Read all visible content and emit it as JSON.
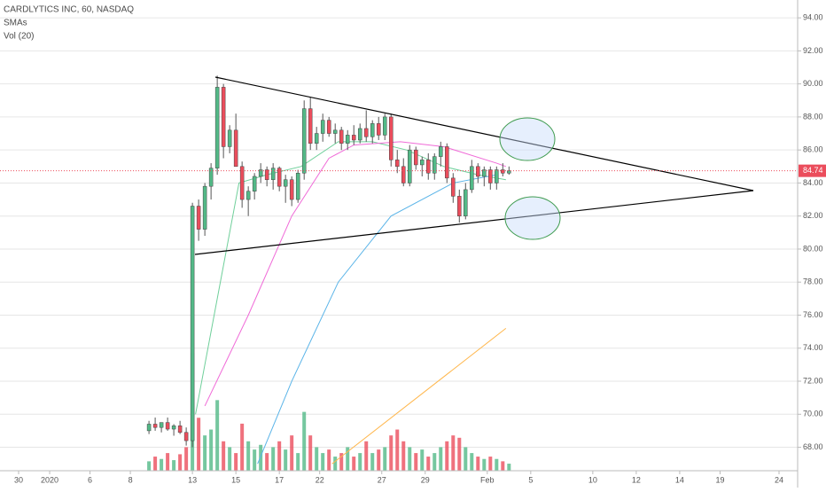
{
  "chart_data": {
    "type": "candlestick",
    "title": "CARDLYTICS INC, 60, NASDAQ",
    "indicators": [
      "SMAs",
      "Vol (20)"
    ],
    "xlim": [
      0,
      257
    ],
    "ylim": [
      66.58,
      95.08
    ],
    "volume_lim": [
      0,
      400
    ],
    "grid": true,
    "up_color": "#53b987",
    "down_color": "#eb4d5c",
    "last_price": 84.74,
    "last_price_color": "#eb4d5c",
    "yticks": [
      {
        "value": 68,
        "label": "68.00"
      },
      {
        "value": 70,
        "label": "70.00"
      },
      {
        "value": 72,
        "label": "72.00"
      },
      {
        "value": 74,
        "label": "74.00"
      },
      {
        "value": 76,
        "label": "76.00"
      },
      {
        "value": 78,
        "label": "78.00"
      },
      {
        "value": 80,
        "label": "80.00"
      },
      {
        "value": 82,
        "label": "82.00"
      },
      {
        "value": 84,
        "label": "84.00"
      },
      {
        "value": 86,
        "label": "86.00"
      },
      {
        "value": 88,
        "label": "88.00"
      },
      {
        "value": 90,
        "label": "90.00"
      },
      {
        "value": 92,
        "label": "92.00"
      },
      {
        "value": 94,
        "label": "94.00"
      }
    ],
    "xticks": [
      {
        "value": 6,
        "label": "30"
      },
      {
        "value": 16,
        "label": "2020"
      },
      {
        "value": 29,
        "label": "6"
      },
      {
        "value": 42,
        "label": "8"
      },
      {
        "value": 62,
        "label": "13"
      },
      {
        "value": 76,
        "label": "15"
      },
      {
        "value": 90,
        "label": "17"
      },
      {
        "value": 103,
        "label": "22"
      },
      {
        "value": 123,
        "label": "27"
      },
      {
        "value": 137,
        "label": "29"
      },
      {
        "value": 157,
        "label": "Feb"
      },
      {
        "value": 171,
        "label": "5"
      },
      {
        "value": 191,
        "label": "10"
      },
      {
        "value": 205,
        "label": "12"
      },
      {
        "value": 219,
        "label": "14"
      },
      {
        "value": 232,
        "label": "19"
      },
      {
        "value": 251,
        "label": "24"
      }
    ],
    "candles": {
      "x": [
        48,
        50,
        52,
        54,
        56,
        58,
        60,
        62,
        64,
        66,
        68,
        70,
        72,
        74,
        76,
        78,
        80,
        82,
        84,
        86,
        88,
        90,
        92,
        94,
        96,
        98,
        100,
        102,
        104,
        106,
        108,
        110,
        112,
        114,
        116,
        118,
        120,
        122,
        124,
        126,
        128,
        130,
        132,
        134,
        136,
        138,
        140,
        142,
        144,
        146,
        148,
        150,
        152,
        154,
        156,
        158,
        160,
        162,
        164
      ],
      "open": [
        69.0,
        69.4,
        69.2,
        69.5,
        69.1,
        69.3,
        68.9,
        68.4,
        82.6,
        81.2,
        83.8,
        84.9,
        89.8,
        86.2,
        87.2,
        85.0,
        83.0,
        83.5,
        84.4,
        84.8,
        84.2,
        84.9,
        83.8,
        84.2,
        83.0,
        84.6,
        88.5,
        86.4,
        87.0,
        87.8,
        87.0,
        87.2,
        86.4,
        86.9,
        86.6,
        87.3,
        86.8,
        87.6,
        86.9,
        88.0,
        85.4,
        85.0,
        84.0,
        86.0,
        85.1,
        85.4,
        84.6,
        85.6,
        86.2,
        84.3,
        83.2,
        82.0,
        83.6,
        85.0,
        84.4,
        84.8,
        84.0,
        84.8,
        84.6
      ],
      "high": [
        69.6,
        69.8,
        69.5,
        69.8,
        69.4,
        69.6,
        69.2,
        82.8,
        83.0,
        84.0,
        85.2,
        90.5,
        90.0,
        87.5,
        88.2,
        85.3,
        83.8,
        84.6,
        85.2,
        85.0,
        85.2,
        85.0,
        84.5,
        84.4,
        84.8,
        89.0,
        89.2,
        87.4,
        88.2,
        88.0,
        87.6,
        87.4,
        87.2,
        87.5,
        87.6,
        88.4,
        87.8,
        88.0,
        88.2,
        88.2,
        86.0,
        85.5,
        86.3,
        86.2,
        85.6,
        85.8,
        85.8,
        86.5,
        86.4,
        84.6,
        83.6,
        84.0,
        85.4,
        85.2,
        85.0,
        85.0,
        85.0,
        85.2,
        85.0
      ],
      "low": [
        68.8,
        69.0,
        68.9,
        69.0,
        68.7,
        68.8,
        68.1,
        68.0,
        80.5,
        80.8,
        83.0,
        84.5,
        85.5,
        85.8,
        86.5,
        82.5,
        82.0,
        83.0,
        84.0,
        83.8,
        83.6,
        83.5,
        82.8,
        82.6,
        82.8,
        84.2,
        86.0,
        86.0,
        86.5,
        86.8,
        86.4,
        86.0,
        86.0,
        86.3,
        86.4,
        86.5,
        86.4,
        86.6,
        86.6,
        85.0,
        84.6,
        83.8,
        83.8,
        84.8,
        84.4,
        84.2,
        84.2,
        85.0,
        84.0,
        82.8,
        81.6,
        81.8,
        83.4,
        84.0,
        83.8,
        83.6,
        83.6,
        84.4,
        84.5
      ],
      "close": [
        69.4,
        69.2,
        69.5,
        69.1,
        69.3,
        68.9,
        68.4,
        82.6,
        81.2,
        83.8,
        84.9,
        89.8,
        86.2,
        87.2,
        85.0,
        83.0,
        83.5,
        84.4,
        84.8,
        84.2,
        84.9,
        83.8,
        84.2,
        83.0,
        84.6,
        88.5,
        86.4,
        87.0,
        87.8,
        87.0,
        87.2,
        86.4,
        86.9,
        86.6,
        87.3,
        86.8,
        87.6,
        86.9,
        88.0,
        85.4,
        85.0,
        84.0,
        86.0,
        85.1,
        85.4,
        84.6,
        85.6,
        86.2,
        84.3,
        83.2,
        82.0,
        83.6,
        85.0,
        84.4,
        84.8,
        84.0,
        84.8,
        84.6,
        84.74
      ],
      "volume": [
        8,
        12,
        10,
        15,
        9,
        14,
        20,
        100,
        45,
        30,
        35,
        60,
        25,
        20,
        15,
        40,
        25,
        18,
        22,
        15,
        20,
        25,
        18,
        30,
        15,
        50,
        30,
        20,
        15,
        18,
        12,
        15,
        20,
        12,
        15,
        25,
        15,
        18,
        20,
        30,
        35,
        25,
        20,
        15,
        18,
        12,
        15,
        20,
        25,
        30,
        28,
        20,
        15,
        12,
        10,
        12,
        10,
        8,
        6
      ]
    },
    "series": [
      {
        "color": "#6fcf9a",
        "x": [
          63,
          77,
          86,
          97,
          109,
          120,
          131,
          143,
          154,
          163
        ],
        "values": [
          70,
          84,
          84.5,
          85,
          86.5,
          86.5,
          86,
          85,
          84.5,
          84.2
        ]
      },
      {
        "color": "#f06bd8",
        "x": [
          66,
          80,
          94,
          106,
          114,
          129,
          143,
          160,
          163
        ],
        "values": [
          70.5,
          76,
          82,
          85.5,
          86.3,
          86.5,
          86.2,
          85.2,
          85
        ]
      },
      {
        "color": "#5ab4e8",
        "x": [
          83,
          94,
          109,
          126,
          146,
          160
        ],
        "values": [
          67,
          72,
          78,
          82,
          84,
          84.5
        ]
      },
      {
        "color": "#ffb74d",
        "x": [
          107,
          163
        ],
        "values": [
          67,
          75.2
        ]
      }
    ]
  }
}
